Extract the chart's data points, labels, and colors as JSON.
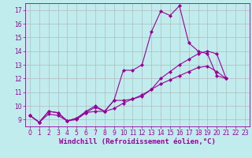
{
  "xlabel": "Windchill (Refroidissement éolien,°C)",
  "xlim": [
    -0.5,
    23.5
  ],
  "ylim": [
    8.5,
    17.5
  ],
  "yticks": [
    9,
    10,
    11,
    12,
    13,
    14,
    15,
    16,
    17
  ],
  "xticks": [
    0,
    1,
    2,
    3,
    4,
    5,
    6,
    7,
    8,
    9,
    10,
    11,
    12,
    13,
    14,
    15,
    16,
    17,
    18,
    19,
    20,
    21,
    22,
    23
  ],
  "bg_color": "#c0ecee",
  "line_color": "#990099",
  "marker": "D",
  "markersize": 2.2,
  "linewidth": 0.8,
  "lines": [
    [
      9.3,
      8.8,
      9.6,
      9.5,
      8.9,
      9.0,
      9.5,
      9.9,
      9.6,
      10.4,
      12.6,
      12.6,
      13.0,
      15.4,
      16.9,
      16.6,
      17.3,
      14.6,
      14.0,
      13.8,
      12.2,
      12.0
    ],
    [
      9.3,
      8.8,
      9.6,
      9.5,
      8.9,
      9.1,
      9.6,
      10.0,
      9.6,
      10.4,
      10.4,
      10.5,
      10.7,
      11.2,
      12.0,
      12.5,
      13.0,
      13.4,
      13.8,
      14.0,
      13.8,
      12.0
    ],
    [
      9.3,
      8.8,
      9.4,
      9.3,
      8.9,
      9.1,
      9.5,
      9.6,
      9.6,
      9.8,
      10.2,
      10.5,
      10.8,
      11.2,
      11.6,
      11.9,
      12.2,
      12.5,
      12.8,
      12.9,
      12.5,
      12.0
    ]
  ],
  "font_color": "#990099",
  "tick_labelsize": 5.5,
  "xlabel_fontsize": 6.5,
  "grid_color": "#b0b0b0",
  "grid_linewidth": 0.4
}
